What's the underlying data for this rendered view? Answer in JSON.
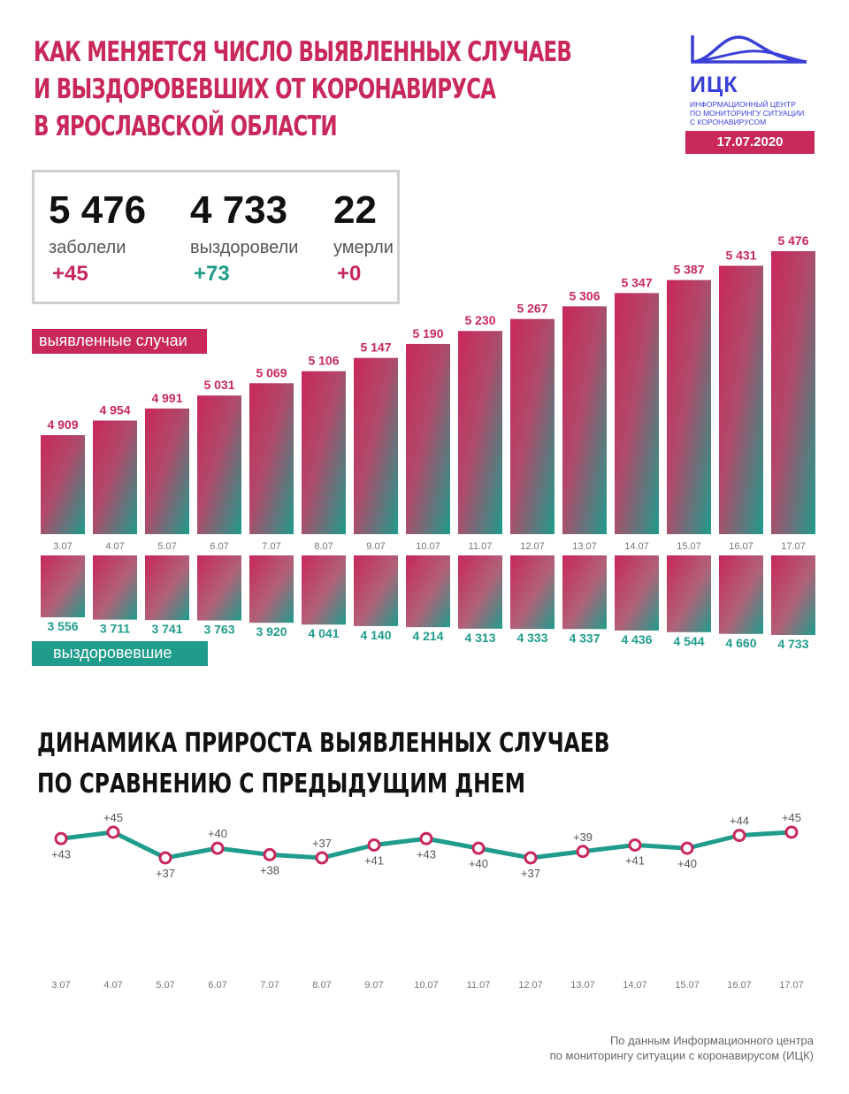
{
  "header": {
    "title_lines": [
      "КАК МЕНЯЕТСЯ ЧИСЛО ВЫЯВЛЕННЫХ СЛУЧАЕВ",
      "И ВЫЗДОРОВЕВШИХ ОТ КОРОНАВИРУСА",
      "В ЯРОСЛАВСКОЙ ОБЛАСТИ"
    ],
    "logo_abbr": "ИЦК",
    "logo_desc_lines": [
      "ИНФОРМАЦИОННЫЙ ЦЕНТР",
      "ПО МОНИТОРИНГУ СИТУАЦИИ",
      "С КОРОНАВИРУСОМ"
    ],
    "date": "17.07.2020"
  },
  "stats": [
    {
      "value": "5 476",
      "label": "заболели",
      "delta": "+45",
      "accent": "red"
    },
    {
      "value": "4 733",
      "label": "выздоровели",
      "delta": "+73",
      "accent": "teal"
    },
    {
      "value": "22",
      "label": "умерли",
      "delta": "+0",
      "accent": "red"
    }
  ],
  "legend": {
    "cases": "выявленные случаи",
    "recovered": "выздоровевшие"
  },
  "section2": {
    "title_lines": [
      "ДИНАМИКА ПРИРОСТА ВЫЯВЛЕННЫХ СЛУЧАЕВ",
      "ПО СРАВНЕНИЮ С ПРЕДЫДУЩИМ ДНЕМ"
    ]
  },
  "source_lines": [
    "По данным Информационного центра",
    "по мониторингу ситуации с коронавирусом (ИЦК)"
  ],
  "colors": {
    "accent_red": "#c8285a",
    "accent_teal": "#1f9c8c",
    "logo_blue": "#3a3fd6"
  },
  "chart_data": [
    {
      "type": "bar",
      "categories": [
        "3.07",
        "4.07",
        "5.07",
        "6.07",
        "7.07",
        "8.07",
        "9.07",
        "10.07",
        "11.07",
        "12.07",
        "13.07",
        "14.07",
        "15.07",
        "16.07",
        "17.07"
      ],
      "series": [
        {
          "name": "выявленные случаи",
          "values": [
            4909,
            4954,
            4991,
            5031,
            5069,
            5106,
            5147,
            5190,
            5230,
            5267,
            5306,
            5347,
            5387,
            5431,
            5476
          ],
          "labels": [
            "4 909",
            "4 954",
            "4 991",
            "5 031",
            "5 069",
            "5 106",
            "5 147",
            "5 190",
            "5 230",
            "5 267",
            "5 306",
            "5 347",
            "5 387",
            "5 431",
            "5 476"
          ]
        },
        {
          "name": "выздоровевшие",
          "values": [
            3556,
            3711,
            3741,
            3763,
            3920,
            4041,
            4140,
            4214,
            4313,
            4333,
            4337,
            4436,
            4544,
            4660,
            4733
          ],
          "labels": [
            "3 556",
            "3 711",
            "3 741",
            "3 763",
            "3 920",
            "4 041",
            "4 140",
            "4 214",
            "4 313",
            "4 333",
            "4 337",
            "4 436",
            "4 544",
            "4 660",
            "4 733"
          ]
        }
      ]
    },
    {
      "type": "line",
      "categories": [
        "3.07",
        "4.07",
        "5.07",
        "6.07",
        "7.07",
        "8.07",
        "9.07",
        "10.07",
        "11.07",
        "12.07",
        "13.07",
        "14.07",
        "15.07",
        "16.07",
        "17.07"
      ],
      "values": [
        43,
        45,
        37,
        40,
        38,
        37,
        41,
        43,
        40,
        37,
        39,
        41,
        40,
        44,
        45
      ],
      "labels": [
        "+43",
        "+45",
        "+37",
        "+40",
        "+38",
        "+37",
        "+41",
        "+43",
        "+40",
        "+37",
        "+39",
        "+41",
        "+40",
        "+44",
        "+45"
      ]
    }
  ]
}
